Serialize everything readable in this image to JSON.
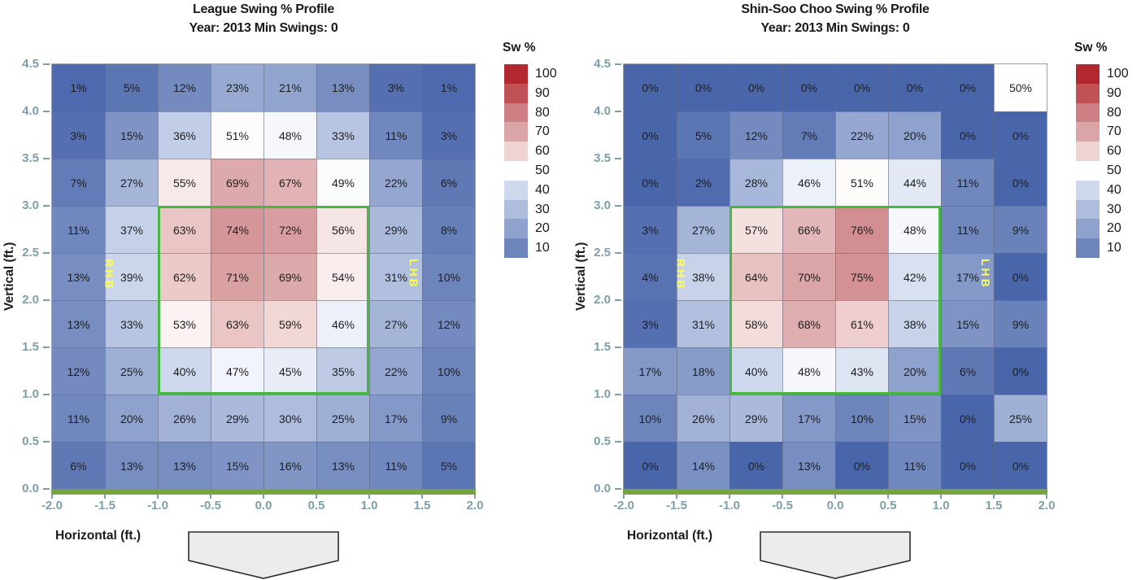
{
  "colors": {
    "gradient_stops": [
      [
        0,
        "#4a66ab"
      ],
      [
        10,
        "#6e85bc"
      ],
      [
        20,
        "#8fa2cd"
      ],
      [
        30,
        "#aebddd"
      ],
      [
        40,
        "#cfd9ed"
      ],
      [
        50,
        "#ffffff"
      ],
      [
        60,
        "#f0d3d3"
      ],
      [
        70,
        "#dba5a7"
      ],
      [
        80,
        "#cd7f83"
      ],
      [
        90,
        "#c05257"
      ],
      [
        100,
        "#b2282e"
      ]
    ],
    "strike_zone_green": "#46b83f",
    "ground_line_green": "#78a440",
    "tick_label": "#7d9fac",
    "handedness_yellow": "#fdfd4e",
    "title_text": "#1a1a1a",
    "plate_fill": "#ececec",
    "plate_border": "#2e2e2e"
  },
  "chart_data": [
    {
      "type": "heatmap",
      "title": "League Swing % Profile",
      "subtitle": "Year: 2013 Min Swings: 0",
      "xlabel": "Horizontal (ft.)",
      "ylabel": "Vertical (ft.)",
      "x_ticks": [
        "-2.0",
        "-1.5",
        "-1.0",
        "-0.5",
        "0.0",
        "0.5",
        "1.0",
        "1.5",
        "2.0"
      ],
      "y_ticks": [
        "4.5",
        "4.0",
        "3.5",
        "3.0",
        "2.5",
        "2.0",
        "1.5",
        "1.0",
        "0.5",
        "0.0"
      ],
      "xlim": [
        -2.0,
        2.0
      ],
      "ylim": [
        0.0,
        4.5
      ],
      "grid": "8 columns x 9 rows, 0.5 ft bins",
      "legend": {
        "title": "Sw %",
        "position": "right",
        "entries": [
          100,
          90,
          80,
          70,
          60,
          50,
          40,
          30,
          20,
          10
        ]
      },
      "values_percent_rows_top_to_bottom": [
        [
          1,
          5,
          12,
          23,
          21,
          13,
          3,
          1
        ],
        [
          3,
          15,
          36,
          51,
          48,
          33,
          11,
          3
        ],
        [
          7,
          27,
          55,
          69,
          67,
          49,
          22,
          6
        ],
        [
          11,
          37,
          63,
          74,
          72,
          56,
          29,
          8
        ],
        [
          13,
          39,
          62,
          71,
          69,
          54,
          31,
          10
        ],
        [
          13,
          33,
          53,
          63,
          59,
          46,
          27,
          12
        ],
        [
          12,
          25,
          40,
          47,
          45,
          35,
          22,
          10
        ],
        [
          11,
          20,
          26,
          29,
          30,
          25,
          17,
          9
        ],
        [
          6,
          13,
          13,
          15,
          16,
          13,
          11,
          5
        ]
      ],
      "strike_zone": {
        "x": [
          -1.0,
          1.0
        ],
        "y": [
          1.0,
          3.0
        ]
      },
      "annotations": [
        {
          "text": "RHB",
          "x": -1.45,
          "y": 2.2
        },
        {
          "text": "LHB",
          "x": 1.43,
          "y": 2.2
        }
      ]
    },
    {
      "type": "heatmap",
      "title": "Shin-Soo Choo Swing % Profile",
      "subtitle": "Year: 2013 Min Swings: 0",
      "xlabel": "Horizontal (ft.)",
      "ylabel": "Vertical (ft.)",
      "x_ticks": [
        "-2.0",
        "-1.5",
        "-1.0",
        "-0.5",
        "0.0",
        "0.5",
        "1.0",
        "1.5",
        "2.0"
      ],
      "y_ticks": [
        "4.5",
        "4.0",
        "3.5",
        "3.0",
        "2.5",
        "2.0",
        "1.5",
        "1.0",
        "0.5",
        "0.0"
      ],
      "xlim": [
        -2.0,
        2.0
      ],
      "ylim": [
        0.0,
        4.5
      ],
      "grid": "8 columns x 9 rows, 0.5 ft bins",
      "legend": {
        "title": "Sw %",
        "position": "right",
        "entries": [
          100,
          90,
          80,
          70,
          60,
          50,
          40,
          30,
          20,
          10
        ]
      },
      "values_percent_rows_top_to_bottom": [
        [
          0,
          0,
          0,
          0,
          0,
          0,
          0,
          50
        ],
        [
          0,
          5,
          12,
          7,
          22,
          20,
          0,
          0
        ],
        [
          0,
          2,
          28,
          46,
          51,
          44,
          11,
          0
        ],
        [
          3,
          27,
          57,
          66,
          76,
          48,
          11,
          9
        ],
        [
          4,
          38,
          64,
          70,
          75,
          42,
          17,
          0
        ],
        [
          3,
          31,
          58,
          68,
          61,
          38,
          15,
          9
        ],
        [
          17,
          18,
          40,
          48,
          43,
          20,
          6,
          0
        ],
        [
          10,
          26,
          29,
          17,
          10,
          15,
          0,
          25
        ],
        [
          0,
          14,
          0,
          13,
          0,
          11,
          0,
          0
        ]
      ],
      "strike_zone": {
        "x": [
          -1.0,
          1.0
        ],
        "y": [
          1.0,
          3.0
        ]
      },
      "annotations": [
        {
          "text": "RHB",
          "x": -1.45,
          "y": 2.2
        },
        {
          "text": "LHB",
          "x": 1.43,
          "y": 2.2
        }
      ]
    }
  ]
}
